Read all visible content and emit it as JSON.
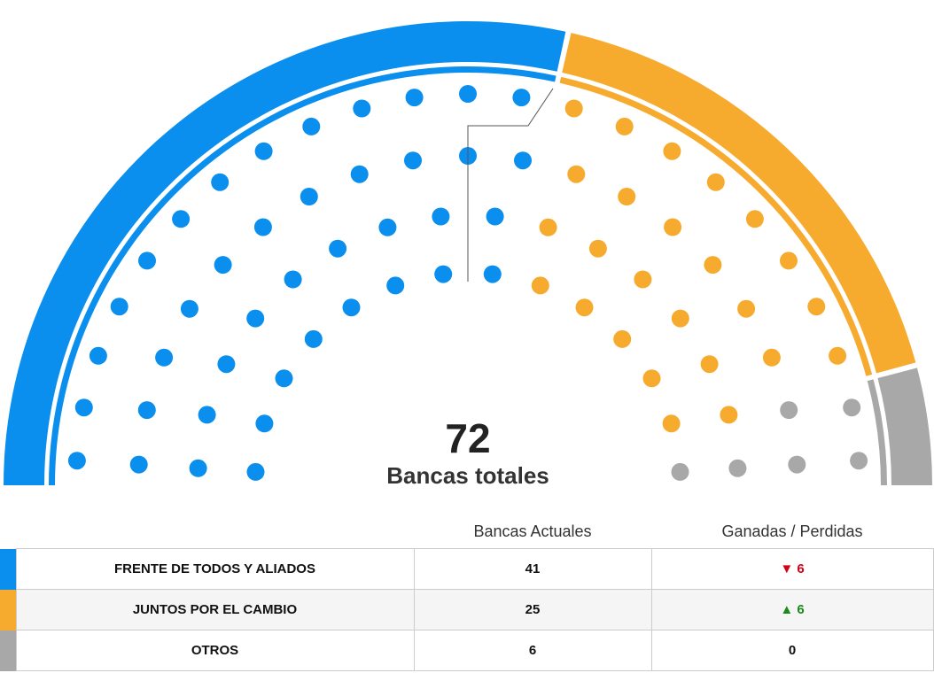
{
  "chart_data": {
    "type": "parliament",
    "total": {
      "value": "72",
      "label": "Bancas totales"
    },
    "series": [
      {
        "name": "FRENTE DE TODOS Y ALIADOS",
        "seats": 41,
        "change": "6",
        "direction": "down",
        "color": "#0a8fef"
      },
      {
        "name": "JUNTOS POR EL CAMBIO",
        "seats": 25,
        "change": "6",
        "direction": "up",
        "color": "#f7ab2e"
      },
      {
        "name": "OTROS",
        "seats": 6,
        "change": "0",
        "direction": "none",
        "color": "#a8a8a8"
      }
    ]
  },
  "table": {
    "col_current": "Bancas Actuales",
    "col_change": "Ganadas / Perdidas",
    "rows": [
      {
        "name": "FRENTE DE TODOS Y ALIADOS",
        "seats": "41",
        "change": "6",
        "arrow": "▼"
      },
      {
        "name": "JUNTOS POR EL CAMBIO",
        "seats": "25",
        "change": "6",
        "arrow": "▲"
      },
      {
        "name": "OTROS",
        "seats": "6",
        "change": "0",
        "arrow": ""
      }
    ]
  },
  "colors": {
    "fdt": "#0a8fef",
    "jxc": "#f7ab2e",
    "otros": "#a8a8a8",
    "down": "#d0021b",
    "up": "#1a8a1a"
  }
}
